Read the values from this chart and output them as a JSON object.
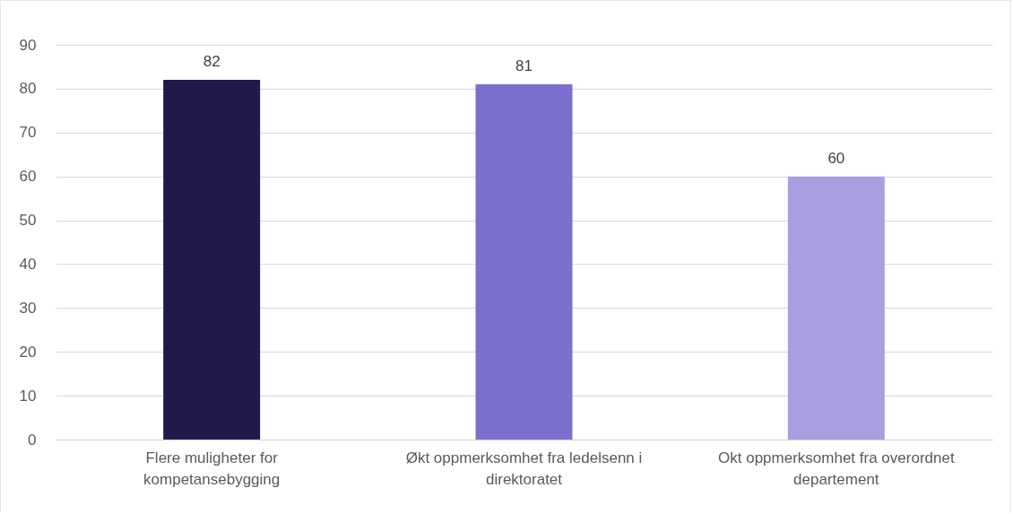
{
  "chart_data": {
    "type": "bar",
    "categories": [
      "Flere muligheter for kompetansebygging",
      "Økt oppmerksomhet fra ledelsenn i direktoratet",
      "Okt oppmerksomhet fra overordnet departement"
    ],
    "values": [
      82,
      81,
      60
    ],
    "colors": [
      "#1f1a4a",
      "#7b6fcd",
      "#a89fe0"
    ],
    "ylim": [
      0,
      90
    ],
    "yticks": [
      0,
      10,
      20,
      30,
      40,
      50,
      60,
      70,
      80,
      90
    ],
    "grid": "y",
    "data_labels": true,
    "legend": false
  }
}
